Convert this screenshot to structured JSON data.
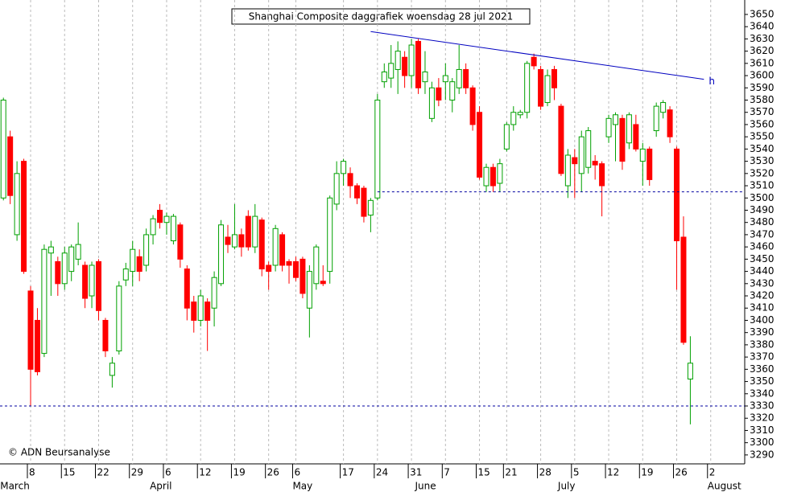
{
  "chart_data": {
    "type": "candlestick",
    "title": "Shanghai Composite daggrafiek woensdag 28 jul 2021",
    "copyright": "© ADN Beursanalyse",
    "categories": [
      null,
      null,
      null,
      null,
      "8",
      null,
      null,
      null,
      null,
      "15",
      null,
      null,
      null,
      null,
      "22",
      null,
      null,
      null,
      null,
      "29",
      null,
      null,
      null,
      null,
      "6",
      null,
      null,
      null,
      null,
      "12",
      null,
      null,
      null,
      null,
      "19",
      null,
      null,
      null,
      null,
      "26",
      null,
      null,
      null,
      "6",
      null,
      null,
      null,
      null,
      null,
      null,
      "17",
      null,
      null,
      null,
      null,
      "24",
      null,
      null,
      null,
      null,
      "31",
      null,
      null,
      null,
      null,
      "7",
      null,
      null,
      null,
      null,
      "15",
      null,
      null,
      null,
      "21",
      null,
      null,
      null,
      null,
      "28",
      null,
      null,
      null,
      null,
      "5",
      null,
      null,
      null,
      null,
      "12",
      null,
      null,
      null,
      null,
      "19",
      null,
      null,
      null,
      null,
      "26",
      null,
      null,
      null,
      null,
      "2",
      null
    ],
    "months": [
      "March",
      null,
      null,
      null,
      null,
      null,
      null,
      null,
      null,
      null,
      null,
      null,
      null,
      null,
      null,
      null,
      null,
      null,
      null,
      null,
      null,
      null,
      "April",
      null,
      null,
      null,
      null,
      null,
      null,
      null,
      null,
      null,
      null,
      null,
      null,
      null,
      null,
      null,
      null,
      null,
      null,
      null,
      null,
      "May",
      null,
      null,
      null,
      null,
      null,
      null,
      null,
      null,
      null,
      null,
      null,
      null,
      null,
      null,
      null,
      null,
      null,
      "June",
      null,
      null,
      null,
      null,
      null,
      null,
      null,
      null,
      null,
      null,
      null,
      null,
      null,
      null,
      null,
      null,
      null,
      null,
      null,
      null,
      "July",
      null,
      null,
      null,
      null,
      null,
      null,
      null,
      null,
      null,
      null,
      null,
      null,
      null,
      null,
      null,
      null,
      null,
      null,
      null,
      null,
      null,
      "August",
      null
    ],
    "series": [
      {
        "up_color": "#00a000",
        "down_color": "#ff0000",
        "open": [
          3500,
          3550,
          3470,
          3530,
          3424,
          3400,
          3373,
          3455,
          3448,
          3430,
          3440,
          3450,
          3445,
          3420,
          3448,
          3400,
          3355,
          3375,
          3433,
          3440,
          3452,
          3445,
          3470,
          3490,
          3480,
          3465,
          3478,
          3442,
          3415,
          3400,
          3415,
          3410,
          3430,
          3468,
          3460,
          3470,
          3485,
          3460,
          3482,
          3445,
          3445,
          3470,
          3448,
          3448,
          3450,
          3410,
          3430,
          3432,
          3440,
          3495,
          3520,
          3520,
          3510,
          3508,
          3486,
          3500,
          3595,
          3598,
          3605,
          3615,
          3600,
          3628,
          3595,
          3565,
          3590,
          3595,
          3580,
          3590,
          3605,
          3590,
          3570,
          3510,
          3525,
          3512,
          3540,
          3560,
          3568,
          3570,
          3615,
          3605,
          3578,
          3605,
          3575,
          3510,
          3533,
          3520,
          3525,
          3530,
          3528,
          3550,
          3560,
          3565,
          3545,
          3560,
          3530,
          3540,
          3555,
          3570,
          3572,
          3540,
          3468,
          3352,
          null,
          null,
          null,
          null
        ],
        "high": [
          3582,
          3555,
          3530,
          3532,
          3428,
          3410,
          3462,
          3465,
          3452,
          3460,
          3462,
          3480,
          3448,
          3448,
          3450,
          3402,
          3370,
          3432,
          3447,
          3465,
          3458,
          3475,
          3486,
          3495,
          3488,
          3487,
          3480,
          3445,
          3420,
          3425,
          3418,
          3440,
          3482,
          3478,
          3495,
          3475,
          3490,
          3495,
          3484,
          3448,
          3478,
          3472,
          3450,
          3452,
          3452,
          3445,
          3462,
          3445,
          3502,
          3530,
          3532,
          3525,
          3512,
          3510,
          3500,
          3585,
          3610,
          3625,
          3628,
          3620,
          3630,
          3630,
          3620,
          3595,
          3598,
          3610,
          3598,
          3625,
          3610,
          3592,
          3575,
          3528,
          3528,
          3532,
          3562,
          3575,
          3572,
          3612,
          3618,
          3608,
          3605,
          3608,
          3577,
          3540,
          3540,
          3555,
          3558,
          3535,
          3530,
          3568,
          3570,
          3568,
          3570,
          3568,
          3545,
          3542,
          3578,
          3580,
          3575,
          3542,
          3485,
          3387,
          null,
          null,
          null,
          null
        ],
        "low": [
          3498,
          3495,
          3465,
          3438,
          3330,
          3355,
          3370,
          3420,
          3420,
          3425,
          3432,
          3445,
          3410,
          3410,
          3400,
          3370,
          3345,
          3372,
          3428,
          3428,
          3432,
          3440,
          3462,
          3475,
          3470,
          3462,
          3443,
          3400,
          3390,
          3395,
          3375,
          3395,
          3428,
          3455,
          3458,
          3452,
          3457,
          3455,
          3436,
          3425,
          3440,
          3440,
          3430,
          3432,
          3418,
          3386,
          3425,
          3428,
          3430,
          3490,
          3510,
          3500,
          3495,
          3480,
          3472,
          3498,
          3590,
          3590,
          3585,
          3590,
          3590,
          3585,
          3585,
          3562,
          3575,
          3580,
          3570,
          3585,
          3585,
          3555,
          3515,
          3505,
          3505,
          3505,
          3538,
          3555,
          3565,
          3565,
          3605,
          3572,
          3575,
          3580,
          3518,
          3500,
          3500,
          3505,
          3520,
          3515,
          3485,
          3545,
          3530,
          3523,
          3540,
          3538,
          3510,
          3510,
          3550,
          3565,
          3545,
          3425,
          3380,
          3315,
          null,
          null,
          null,
          null
        ],
        "close": [
          3580,
          3502,
          3520,
          3440,
          3360,
          3358,
          3458,
          3460,
          3430,
          3455,
          3460,
          3462,
          3418,
          3445,
          3408,
          3375,
          3365,
          3428,
          3442,
          3458,
          3440,
          3470,
          3483,
          3480,
          3485,
          3485,
          3450,
          3410,
          3400,
          3420,
          3400,
          3435,
          3478,
          3462,
          3470,
          3460,
          3460,
          3485,
          3442,
          3440,
          3475,
          3445,
          3445,
          3435,
          3422,
          3440,
          3460,
          3430,
          3500,
          3520,
          3530,
          3510,
          3500,
          3485,
          3498,
          3580,
          3603,
          3610,
          3620,
          3600,
          3625,
          3590,
          3603,
          3590,
          3580,
          3600,
          3595,
          3605,
          3590,
          3560,
          3517,
          3525,
          3510,
          3528,
          3560,
          3570,
          3570,
          3610,
          3608,
          3575,
          3600,
          3590,
          3520,
          3535,
          3528,
          3550,
          3555,
          3527,
          3510,
          3565,
          3568,
          3530,
          3568,
          3540,
          3540,
          3515,
          3575,
          3578,
          3550,
          3465,
          3382,
          3365,
          null,
          null,
          null,
          null
        ]
      }
    ],
    "lines": [
      {
        "color": "#0000c0",
        "dashed": false,
        "x": [
          54,
          103
        ],
        "y": [
          3636,
          3597
        ],
        "label": "h"
      },
      {
        "color": "#0000a0",
        "dashed": true,
        "x": [
          55,
          109
        ],
        "y": [
          3505,
          3505
        ]
      },
      {
        "color": "#0000a0",
        "dashed": true,
        "x": [
          -0.5,
          109
        ],
        "y": [
          3330,
          3330
        ]
      }
    ],
    "xlim": [
      -0.5,
      109
    ],
    "ylim": [
      3282.7,
      3661.8
    ],
    "yticks": [
      3650,
      3640,
      3630,
      3620,
      3610,
      3600,
      3590,
      3580,
      3570,
      3560,
      3550,
      3540,
      3530,
      3520,
      3510,
      3500,
      3490,
      3480,
      3470,
      3460,
      3450,
      3440,
      3430,
      3420,
      3410,
      3400,
      3390,
      3380,
      3370,
      3360,
      3350,
      3340,
      3330,
      3320,
      3310,
      3300,
      3290
    ],
    "grid": true
  }
}
